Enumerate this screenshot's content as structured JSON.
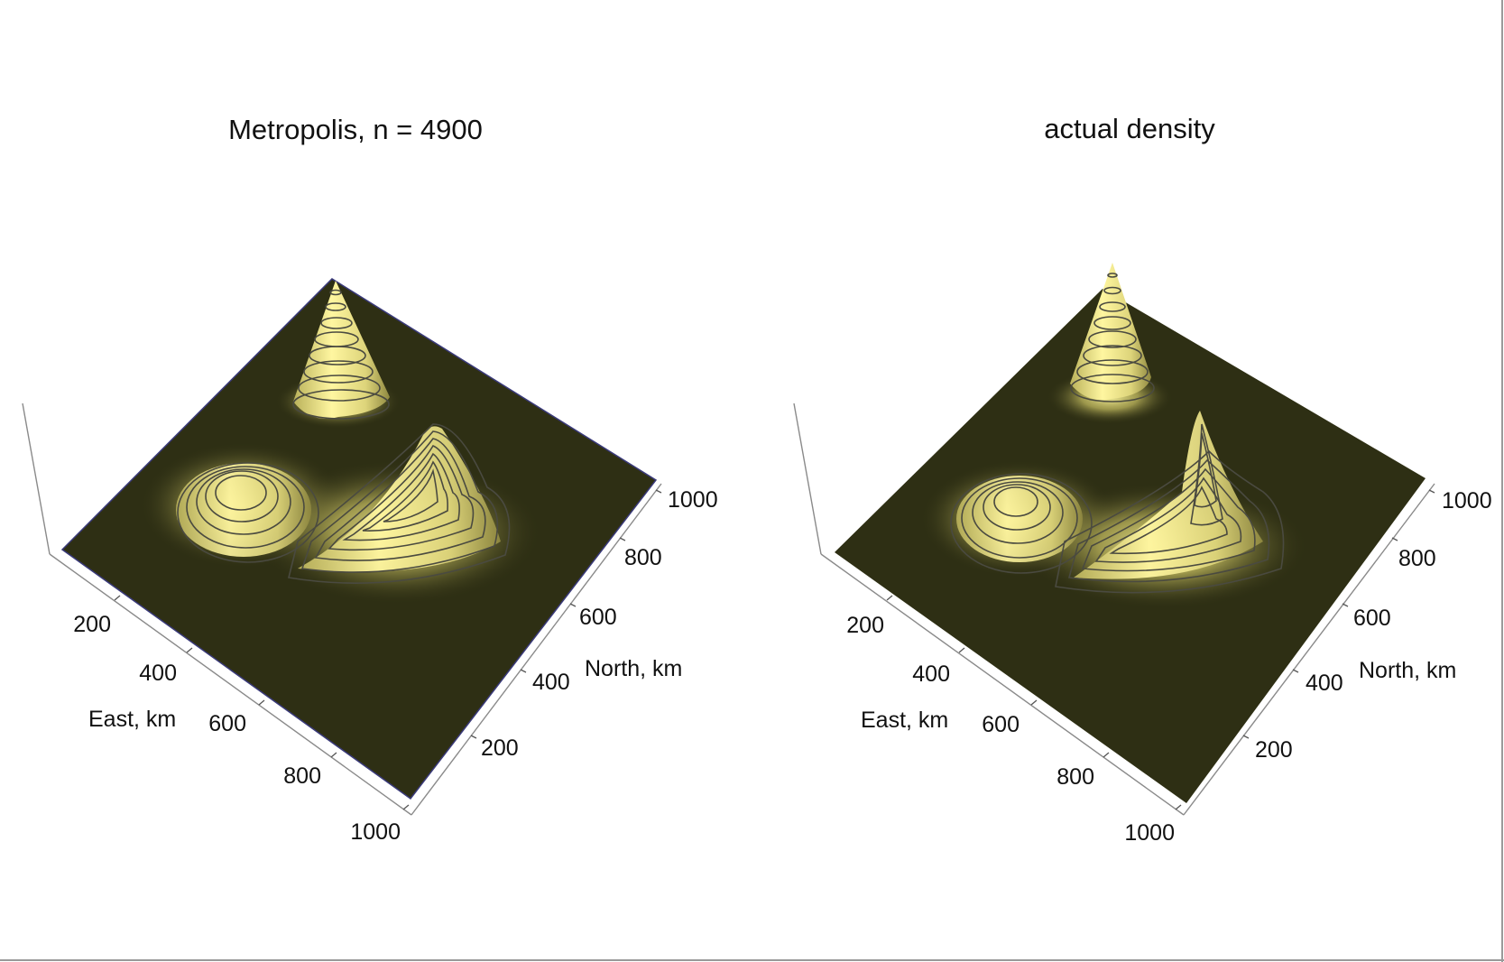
{
  "chart_data": [
    {
      "type": "surface",
      "title": "Metropolis, n = 4900",
      "xlabel": "East, km",
      "ylabel": "North, km",
      "xlim": [
        0,
        1000
      ],
      "ylim": [
        0,
        1000
      ],
      "x_ticks": [
        "200",
        "400",
        "600",
        "800",
        "1000"
      ],
      "y_ticks": [
        "200",
        "400",
        "600",
        "800",
        "1000"
      ],
      "peaks": [
        {
          "east": 170,
          "north": 820,
          "relative_height": 1.0
        },
        {
          "east": 430,
          "north": 430,
          "relative_height": 0.45
        },
        {
          "east": 640,
          "north": 680,
          "relative_height": 0.75
        },
        {
          "east": 560,
          "north": 440,
          "relative_height": 0.4
        }
      ],
      "colors": {
        "surface_low": "#2e2f14",
        "surface_high": "#fff8a0",
        "contour": "#4a4a40"
      }
    },
    {
      "type": "surface",
      "title": "actual density",
      "xlabel": "East, km",
      "ylabel": "North, km",
      "xlim": [
        0,
        1000
      ],
      "ylim": [
        0,
        1000
      ],
      "x_ticks": [
        "200",
        "400",
        "600",
        "800",
        "1000"
      ],
      "y_ticks": [
        "200",
        "400",
        "600",
        "800",
        "1000"
      ],
      "peaks": [
        {
          "east": 160,
          "north": 830,
          "relative_height": 1.0
        },
        {
          "east": 420,
          "north": 420,
          "relative_height": 0.35
        },
        {
          "east": 660,
          "north": 690,
          "relative_height": 0.9
        },
        {
          "east": 570,
          "north": 430,
          "relative_height": 0.35
        }
      ],
      "colors": {
        "surface_low": "#2e2f14",
        "surface_high": "#fff8a0",
        "contour": "#4a4a40"
      }
    }
  ]
}
